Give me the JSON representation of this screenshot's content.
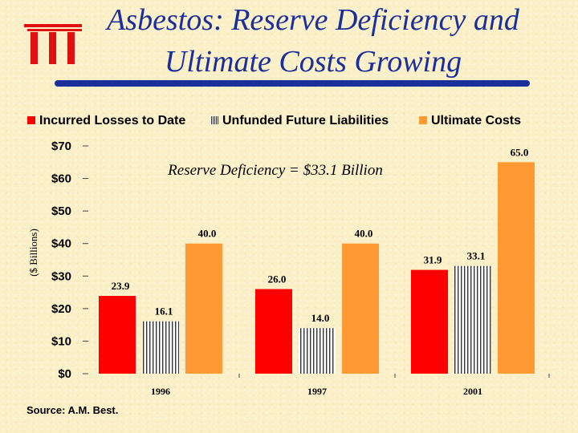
{
  "title_line1": "Asbestos: Reserve Deficiency and",
  "title_line2": "Ultimate Costs Growing",
  "logo_text": "iii",
  "colors": {
    "title": "#1a2f9a",
    "incurred": "#ff0000",
    "ultimate": "#ff9933",
    "unfunded_stripe": "#333333"
  },
  "annotation": "Reserve  Deficiency = $33.1 Billion",
  "source": "Source: A.M. Best.",
  "chart_data": {
    "type": "bar",
    "categories": [
      "1996",
      "1997",
      "2001"
    ],
    "series": [
      {
        "name": "Incurred Losses to Date",
        "values": [
          23.9,
          26.0,
          31.9
        ],
        "value_labels": [
          "23.9",
          "26.0",
          "31.9"
        ]
      },
      {
        "name": "Unfunded Future Liabilities",
        "values": [
          16.1,
          14.0,
          33.1
        ],
        "value_labels": [
          "16.1",
          "14.0",
          "33.1"
        ]
      },
      {
        "name": "Ultimate Costs",
        "values": [
          40.0,
          40.0,
          65.0
        ],
        "value_labels": [
          "40.0",
          "40.0",
          "65.0"
        ]
      }
    ],
    "ylabel": "($ Billions)",
    "ylim": [
      0,
      70
    ],
    "yticks": [
      0,
      10,
      20,
      30,
      40,
      50,
      60,
      70
    ],
    "ytick_labels": [
      "$0",
      "$10",
      "$20",
      "$30",
      "$40",
      "$50",
      "$60",
      "$70"
    ],
    "legend_position": "top",
    "grid": false
  }
}
